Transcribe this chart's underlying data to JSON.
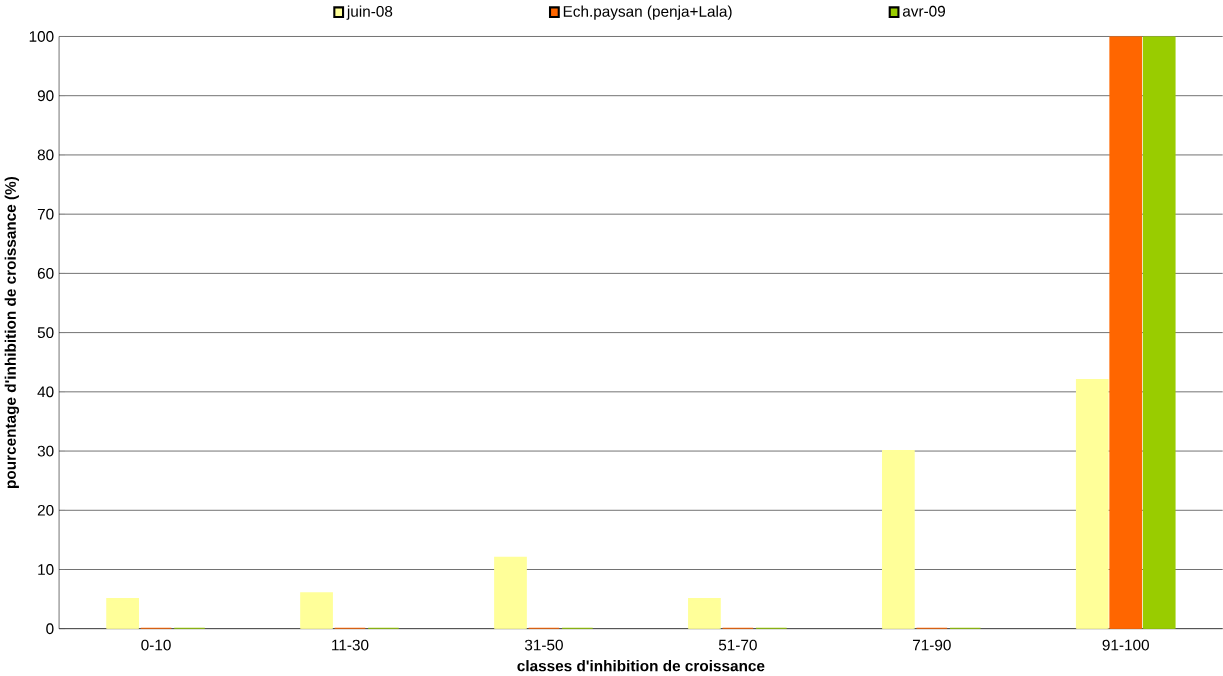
{
  "chart_data": {
    "type": "bar",
    "xlabel": "classes d'inhibition de croissance",
    "ylabel": "pourcentage d'inhibition de croissance (%)",
    "categories": [
      "0-10",
      "11-30",
      "31-50",
      "51-70",
      "71-90",
      "91-100"
    ],
    "series": [
      {
        "name": "juin-08",
        "color": "#ffff99",
        "values": [
          5,
          6,
          12,
          5,
          30,
          42
        ]
      },
      {
        "name": "Ech.paysan (penja+Lala)",
        "color": "#ff6600",
        "values": [
          0,
          0,
          0,
          0,
          0,
          100
        ]
      },
      {
        "name": "avr-09",
        "color": "#99cc00",
        "values": [
          0,
          0,
          0,
          0,
          0,
          100
        ]
      }
    ],
    "ylim": [
      0,
      100
    ],
    "yticks": [
      0,
      10,
      20,
      30,
      40,
      50,
      60,
      70,
      80,
      90,
      100
    ],
    "grid": "y",
    "legend": "top"
  }
}
